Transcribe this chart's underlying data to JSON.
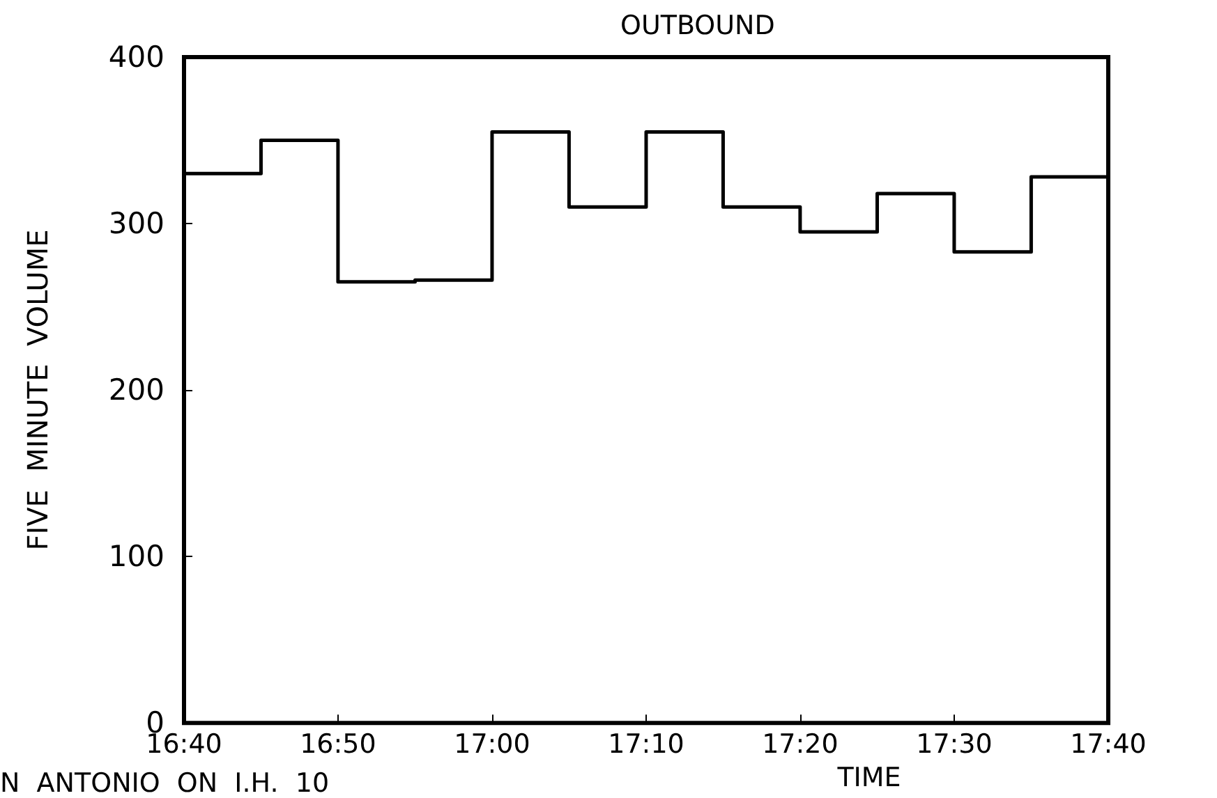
{
  "chart_data": {
    "type": "step",
    "title": "OUTBOUND",
    "xlabel": "TIME",
    "ylabel": "FIVE  MINUTE  VOLUME",
    "annotations": [
      "N  ANTONIO  ON  I.H.  10"
    ],
    "x": [
      16.6667,
      16.75,
      16.8333,
      16.9167,
      17,
      17.0833,
      17.1667,
      17.25,
      17.3333,
      17.4167,
      17.5,
      17.5833,
      17.6667
    ],
    "values": [
      330,
      350,
      265,
      266,
      355,
      310,
      355,
      310,
      295,
      318,
      283,
      328,
      328
    ],
    "color": "#000000",
    "marker": "none",
    "line_style": "solid",
    "grid": false,
    "xlim": [
      16.6667,
      17.6667
    ],
    "xticks": [
      {
        "value": 16.6667,
        "label": "16:40"
      },
      {
        "value": 16.8333,
        "label": "16:50"
      },
      {
        "value": 17,
        "label": "17:00"
      },
      {
        "value": 17.1667,
        "label": "17:10"
      },
      {
        "value": 17.3333,
        "label": "17:20"
      },
      {
        "value": 17.5,
        "label": "17:30"
      },
      {
        "value": 17.6667,
        "label": "17:40"
      }
    ],
    "ylim": [
      0,
      400
    ],
    "yticks": [
      0,
      100,
      200,
      300,
      400
    ]
  }
}
